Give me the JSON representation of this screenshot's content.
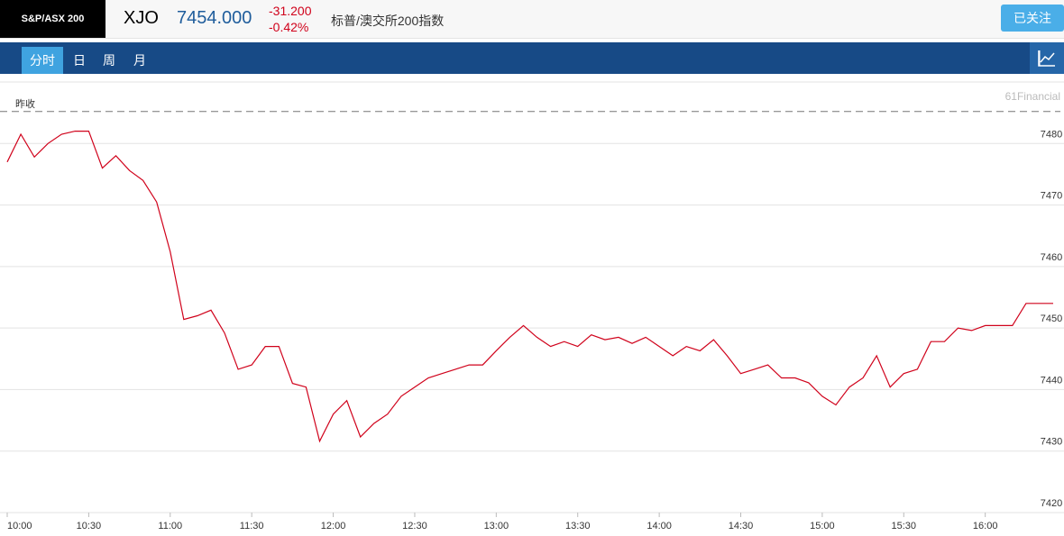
{
  "header": {
    "index_name": "S&P/ASX 200",
    "symbol": "XJO",
    "price": "7454.000",
    "change": "-31.200",
    "change_pct": "-0.42%",
    "description": "标普/澳交所200指数",
    "follow_button": "已关注"
  },
  "tabs": [
    "分时",
    "日",
    "周",
    "月"
  ],
  "chart_data": {
    "type": "line",
    "watermark": "61Financial",
    "reference": {
      "label": "昨收",
      "value": 7485.2
    },
    "x": [
      "10:00",
      "10:05",
      "10:10",
      "10:15",
      "10:20",
      "10:25",
      "10:30",
      "10:35",
      "10:40",
      "10:45",
      "10:50",
      "10:55",
      "11:00",
      "11:05",
      "11:10",
      "11:15",
      "11:20",
      "11:25",
      "11:30",
      "11:35",
      "11:40",
      "11:45",
      "11:50",
      "11:55",
      "12:00",
      "12:05",
      "12:10",
      "12:15",
      "12:20",
      "12:25",
      "12:30",
      "12:35",
      "12:40",
      "12:45",
      "12:50",
      "12:55",
      "13:00",
      "13:05",
      "13:10",
      "13:15",
      "13:20",
      "13:25",
      "13:30",
      "13:35",
      "13:40",
      "13:45",
      "13:50",
      "13:55",
      "14:00",
      "14:05",
      "14:10",
      "14:15",
      "14:20",
      "14:25",
      "14:30",
      "14:35",
      "14:40",
      "14:45",
      "14:50",
      "14:55",
      "15:00",
      "15:05",
      "15:10",
      "15:15",
      "15:20",
      "15:25",
      "15:30",
      "15:35",
      "15:40",
      "15:45",
      "15:50",
      "15:55",
      "16:00",
      "16:05",
      "16:10",
      "16:15",
      "16:20",
      "16:25"
    ],
    "series": [
      {
        "name": "XJO",
        "color": "#d0021b",
        "values": [
          7477,
          7481.5,
          7477.8,
          7480,
          7481.5,
          7482,
          7482,
          7476,
          7478,
          7475.6,
          7474,
          7470.5,
          7462.4,
          7451.4,
          7452,
          7452.9,
          7449.2,
          7443.3,
          7444,
          7447,
          7447,
          7441,
          7440.4,
          7431.6,
          7436,
          7438.2,
          7432.3,
          7434.5,
          7436,
          7438.9,
          7440.4,
          7441.9,
          7442.6,
          7443.3,
          7444,
          7444,
          7446.3,
          7448.5,
          7450.4,
          7448.5,
          7447,
          7447.8,
          7447,
          7448.9,
          7448.1,
          7448.5,
          7447.5,
          7448.5,
          7447,
          7445.5,
          7447,
          7446.3,
          7448.1,
          7445.5,
          7442.6,
          7443.3,
          7444,
          7441.9,
          7441.9,
          7441.1,
          7438.9,
          7437.5,
          7440.4,
          7441.9,
          7445.5,
          7440.4,
          7442.6,
          7443.3,
          7447.8,
          7447.8,
          7450,
          7449.6,
          7450.4,
          7450.4,
          7450.4,
          7454,
          7454,
          7454
        ]
      }
    ],
    "xlim": [
      "10:00",
      "16:25"
    ],
    "xticks": [
      "10:00",
      "10:30",
      "11:00",
      "11:30",
      "12:00",
      "12:30",
      "13:00",
      "13:30",
      "14:00",
      "14:30",
      "15:00",
      "15:30",
      "16:00"
    ],
    "ylim": [
      7420,
      7490
    ],
    "yticks": [
      7420,
      7430,
      7440,
      7450,
      7460,
      7470,
      7480
    ],
    "grid": true
  }
}
